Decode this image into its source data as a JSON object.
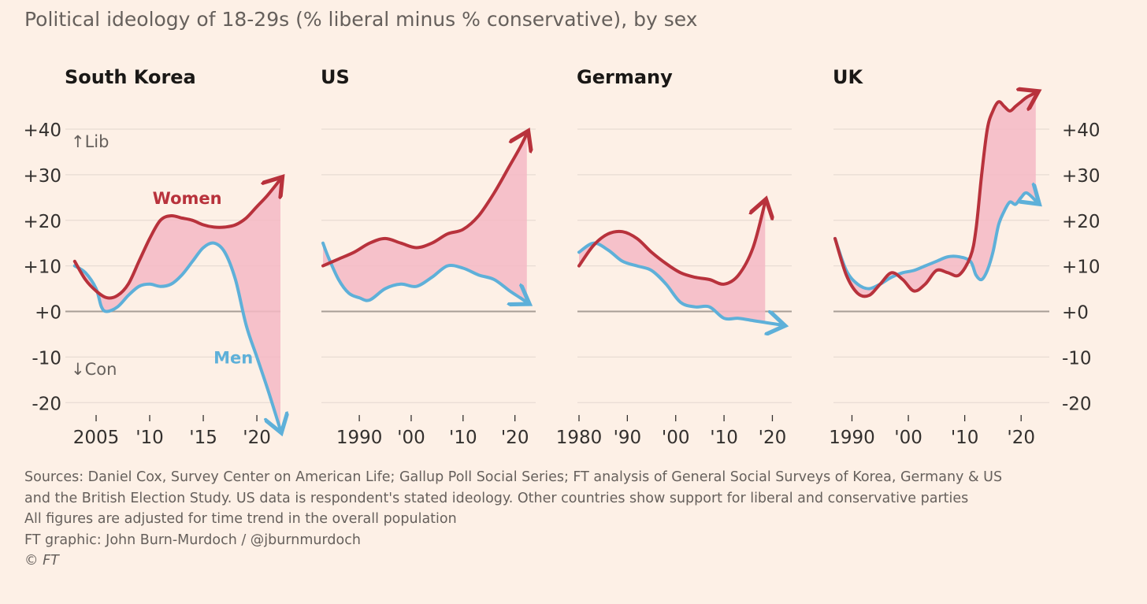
{
  "title": "Political ideology of 18-29s (% liberal minus % conservative), by sex",
  "colors": {
    "background": "#fdf0e6",
    "women": "#b8323c",
    "men": "#5eb0d9",
    "gap_fill": "#f5b8c4",
    "grid": "#e8dcd3",
    "zero": "#a89e96",
    "text": "#33302e",
    "muted": "#66605c"
  },
  "y_axis": {
    "ticks": [
      40,
      30,
      20,
      10,
      0,
      -10,
      -20
    ],
    "tick_labels": [
      "+40",
      "+30",
      "+20",
      "+10",
      "+0",
      "-10",
      "-20"
    ],
    "lib_label": "↑Lib",
    "con_label": "↓Con"
  },
  "chart_data": [
    {
      "type": "line",
      "title": "South Korea",
      "ylim": [
        -25,
        45
      ],
      "xlim": [
        2002.5,
        2022.2
      ],
      "x_ticks": [
        2005,
        2010,
        2015,
        2020
      ],
      "x_tick_labels": [
        "2005",
        "'10",
        "'15",
        "'20"
      ],
      "series": [
        {
          "name": "Women",
          "label": "Women",
          "label_at": [
            2013.5,
            25
          ],
          "x": [
            2003,
            2004,
            2005,
            2006,
            2007,
            2008,
            2009,
            2010,
            2011,
            2012,
            2013,
            2014,
            2015,
            2016,
            2017,
            2018,
            2019,
            2020,
            2021,
            2022.2
          ],
          "y": [
            11,
            7,
            4.5,
            3,
            3.5,
            6,
            11,
            16,
            20,
            21,
            20.5,
            20,
            19,
            18.5,
            18.5,
            19,
            20.5,
            23,
            25.5,
            29
          ]
        },
        {
          "name": "Men",
          "label": "Men",
          "label_at": [
            2017.8,
            -10
          ],
          "x": [
            2003,
            2004,
            2005,
            2005.5,
            2006,
            2007,
            2008,
            2009,
            2010,
            2011,
            2012,
            2013,
            2014,
            2015,
            2016,
            2017,
            2018,
            2019,
            2020,
            2021,
            2022.2
          ],
          "y": [
            10,
            8.5,
            5,
            1,
            0,
            1,
            3.5,
            5.5,
            6,
            5.5,
            6,
            8,
            11,
            14,
            15,
            13,
            7,
            -3,
            -10,
            -17,
            -26
          ]
        }
      ]
    },
    {
      "type": "line",
      "title": "US",
      "ylim": [
        -25,
        45
      ],
      "xlim": [
        1983,
        2024
      ],
      "x_ticks": [
        1990,
        2000,
        2010,
        2020
      ],
      "x_tick_labels": [
        "1990",
        "'00",
        "'10",
        "'20"
      ],
      "series": [
        {
          "name": "Women",
          "x": [
            1983,
            1986,
            1989,
            1992,
            1995,
            1998,
            2001,
            2004,
            2007,
            2010,
            2013,
            2016,
            2019,
            2021,
            2022.3
          ],
          "y": [
            10,
            11.5,
            13,
            15,
            16,
            15,
            14,
            15,
            17,
            18,
            21,
            26,
            32,
            36,
            39
          ]
        },
        {
          "name": "Men",
          "x": [
            1983,
            1984,
            1986,
            1988,
            1990,
            1992,
            1995,
            1998,
            2001,
            2004,
            2007,
            2010,
            2013,
            2016,
            2019,
            2021,
            2022.3
          ],
          "y": [
            15,
            12,
            7,
            4,
            3,
            2.5,
            5,
            6,
            5.5,
            7.5,
            10,
            9.5,
            8,
            7,
            4.5,
            3,
            2
          ]
        }
      ]
    },
    {
      "type": "line",
      "title": "Germany",
      "ylim": [
        -25,
        45
      ],
      "xlim": [
        1980,
        2024
      ],
      "x_ticks": [
        1980,
        1990,
        2000,
        2010,
        2020
      ],
      "x_tick_labels": [
        "1980",
        "'90",
        "'00",
        "'10",
        "'20"
      ],
      "series": [
        {
          "name": "Women",
          "x": [
            1980,
            1983,
            1986,
            1989,
            1992,
            1995,
            1998,
            2001,
            2004,
            2007,
            2010,
            2013,
            2016,
            2018.5
          ],
          "y": [
            10,
            14.5,
            17,
            17.5,
            16,
            13,
            10.5,
            8.5,
            7.5,
            7,
            6,
            8,
            14,
            24
          ]
        },
        {
          "name": "Men",
          "x": [
            1980,
            1983,
            1986,
            1989,
            1992,
            1995,
            1998,
            2001,
            2004,
            2007,
            2010,
            2013,
            2016,
            2019,
            2022
          ],
          "y": [
            13,
            15,
            13.5,
            11,
            10,
            9,
            6,
            2,
            1,
            1,
            -1.5,
            -1.5,
            -2,
            -2.5,
            -3
          ]
        }
      ]
    },
    {
      "type": "line",
      "title": "UK",
      "ylim": [
        -25,
        45
      ],
      "xlim": [
        1987,
        2025
      ],
      "x_ticks": [
        1990,
        2000,
        2010,
        2020
      ],
      "x_tick_labels": [
        "1990",
        "'00",
        "'10",
        "'20"
      ],
      "series": [
        {
          "name": "Women",
          "x": [
            1987,
            1989,
            1991,
            1993,
            1995,
            1997,
            1999,
            2001,
            2003,
            2005,
            2007,
            2009,
            2011,
            2012,
            2013,
            2014,
            2015,
            2016,
            2017,
            2018,
            2019,
            2020,
            2021,
            2022.6
          ],
          "y": [
            16,
            8,
            4,
            3.5,
            6,
            8.5,
            7,
            4.5,
            6,
            9,
            8.5,
            8,
            12,
            18,
            30,
            40,
            44,
            46,
            45,
            44,
            45,
            46,
            47,
            48
          ]
        },
        {
          "name": "Men",
          "x": [
            1987,
            1989,
            1991,
            1993,
            1995,
            1997,
            1999,
            2001,
            2003,
            2005,
            2007,
            2009,
            2011,
            2012,
            2013,
            2014,
            2015,
            2016,
            2017,
            2018,
            2019,
            2020,
            2021,
            2022.8
          ],
          "y": [
            16,
            9,
            6,
            5,
            6,
            7.5,
            8.5,
            9,
            10,
            11,
            12,
            12,
            11,
            8,
            7,
            9,
            13,
            19,
            22,
            24,
            23.5,
            25,
            26,
            24
          ]
        }
      ]
    }
  ],
  "footer": {
    "sources_line1": "Sources: Daniel Cox, Survey Center on American Life; Gallup Poll Social Series; FT analysis of General Social Surveys of Korea, Germany & US",
    "sources_line2": "and the British Election Study. US data is respondent's stated ideology. Other countries show support for liberal and conservative parties",
    "sources_line3": "All figures are adjusted for time trend in the overall population",
    "credit": "FT graphic: John Burn-Murdoch / @jburnmurdoch",
    "copyright": "© FT"
  }
}
